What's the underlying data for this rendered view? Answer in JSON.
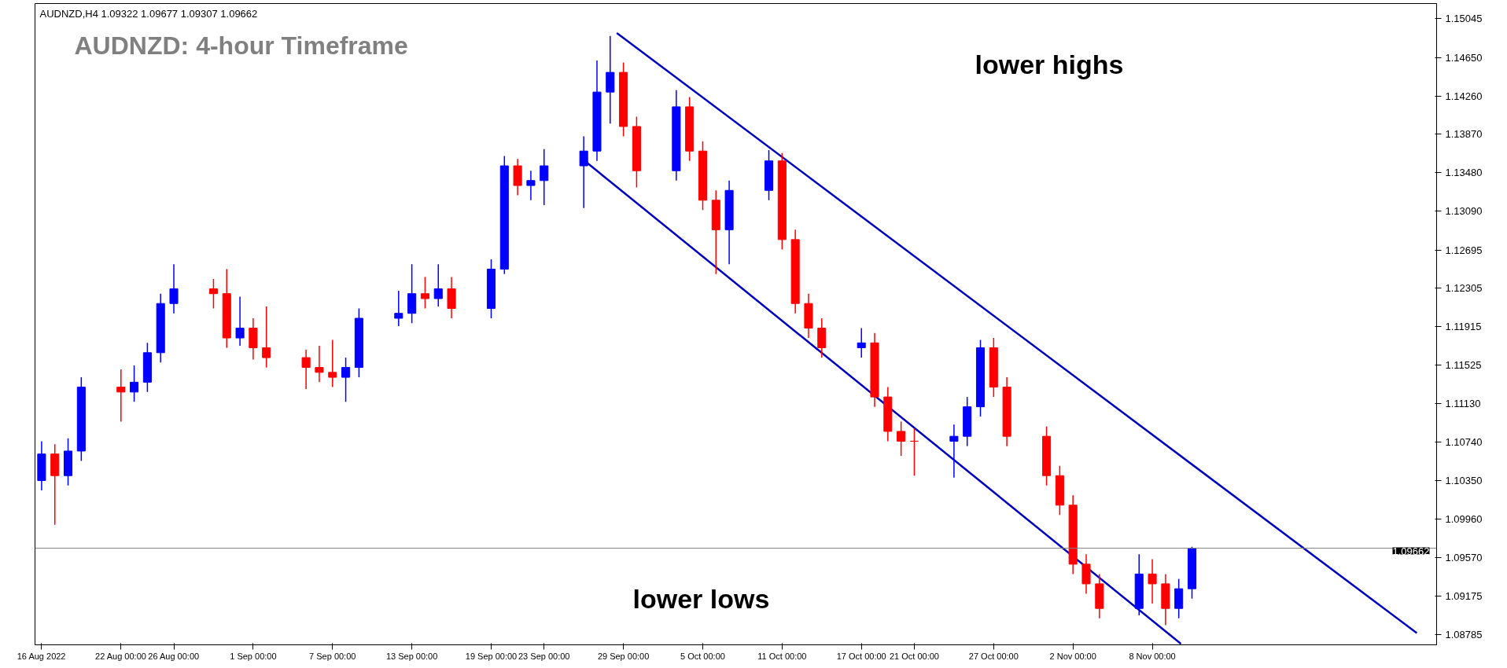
{
  "chart_data": {
    "type": "candlestick",
    "title": "AUDNZD: 4-hour Timeframe",
    "subtitle": "AUDNZD,H4  1.09322 1.09677 1.09307 1.09662",
    "annotations": [
      "lower highs",
      "lower lows"
    ],
    "x": [
      "2022-08-16",
      "2022-08-17",
      "2022-08-18",
      "2022-08-19",
      "2022-08-22",
      "2022-08-23",
      "2022-08-24",
      "2022-08-25",
      "2022-08-26",
      "2022-08-29",
      "2022-08-30",
      "2022-08-31",
      "2022-09-01",
      "2022-09-02",
      "2022-09-05",
      "2022-09-06",
      "2022-09-07",
      "2022-09-08",
      "2022-09-09",
      "2022-09-12",
      "2022-09-13",
      "2022-09-14",
      "2022-09-15",
      "2022-09-16",
      "2022-09-19",
      "2022-09-20",
      "2022-09-21",
      "2022-09-22",
      "2022-09-23",
      "2022-09-26",
      "2022-09-27",
      "2022-09-28",
      "2022-09-29",
      "2022-09-30",
      "2022-10-03",
      "2022-10-04",
      "2022-10-05",
      "2022-10-06",
      "2022-10-07",
      "2022-10-10",
      "2022-10-11",
      "2022-10-12",
      "2022-10-13",
      "2022-10-14",
      "2022-10-17",
      "2022-10-18",
      "2022-10-19",
      "2022-10-20",
      "2022-10-21",
      "2022-10-24",
      "2022-10-25",
      "2022-10-26",
      "2022-10-27",
      "2022-10-28",
      "2022-10-31",
      "2022-11-01",
      "2022-11-02",
      "2022-11-03",
      "2022-11-04",
      "2022-11-07",
      "2022-11-08",
      "2022-11-09",
      "2022-11-10",
      "2022-11-11"
    ],
    "ohlc": [
      [
        1.1035,
        1.1075,
        1.1025,
        1.1062
      ],
      [
        1.1062,
        1.1072,
        1.099,
        1.104
      ],
      [
        1.104,
        1.1078,
        1.103,
        1.1065
      ],
      [
        1.1065,
        1.114,
        1.1055,
        1.113
      ],
      [
        1.113,
        1.1148,
        1.1095,
        1.1125
      ],
      [
        1.1125,
        1.1152,
        1.1115,
        1.1135
      ],
      [
        1.1135,
        1.1175,
        1.1125,
        1.1165
      ],
      [
        1.1165,
        1.1225,
        1.1155,
        1.1215
      ],
      [
        1.1215,
        1.1255,
        1.1205,
        1.123
      ],
      [
        1.123,
        1.124,
        1.121,
        1.1225
      ],
      [
        1.1225,
        1.125,
        1.117,
        1.118
      ],
      [
        1.118,
        1.1222,
        1.1172,
        1.119
      ],
      [
        1.119,
        1.12,
        1.1158,
        1.117
      ],
      [
        1.117,
        1.1212,
        1.115,
        1.116
      ],
      [
        1.116,
        1.1168,
        1.1128,
        1.115
      ],
      [
        1.115,
        1.1172,
        1.1135,
        1.1145
      ],
      [
        1.1145,
        1.1178,
        1.113,
        1.114
      ],
      [
        1.114,
        1.116,
        1.1115,
        1.115
      ],
      [
        1.115,
        1.121,
        1.114,
        1.12
      ],
      [
        1.12,
        1.1228,
        1.1192,
        1.1205
      ],
      [
        1.1205,
        1.1255,
        1.1195,
        1.1225
      ],
      [
        1.1225,
        1.1242,
        1.121,
        1.122
      ],
      [
        1.122,
        1.1255,
        1.1212,
        1.123
      ],
      [
        1.123,
        1.1242,
        1.12,
        1.121
      ],
      [
        1.121,
        1.126,
        1.12,
        1.125
      ],
      [
        1.125,
        1.1365,
        1.1245,
        1.1355
      ],
      [
        1.1355,
        1.1362,
        1.1325,
        1.1335
      ],
      [
        1.1335,
        1.135,
        1.132,
        1.134
      ],
      [
        1.134,
        1.1372,
        1.1315,
        1.1355
      ],
      [
        1.1355,
        1.1385,
        1.1312,
        1.137
      ],
      [
        1.137,
        1.1462,
        1.136,
        1.143
      ],
      [
        1.143,
        1.1487,
        1.1398,
        1.145
      ],
      [
        1.145,
        1.146,
        1.1385,
        1.1395
      ],
      [
        1.1395,
        1.1405,
        1.1333,
        1.135
      ],
      [
        1.135,
        1.1432,
        1.134,
        1.1415
      ],
      [
        1.1415,
        1.1425,
        1.136,
        1.137
      ],
      [
        1.137,
        1.138,
        1.131,
        1.132
      ],
      [
        1.132,
        1.133,
        1.1245,
        1.129
      ],
      [
        1.129,
        1.134,
        1.1255,
        1.133
      ],
      [
        1.133,
        1.1371,
        1.132,
        1.136
      ],
      [
        1.136,
        1.1368,
        1.127,
        1.128
      ],
      [
        1.128,
        1.129,
        1.1205,
        1.1215
      ],
      [
        1.1215,
        1.1225,
        1.118,
        1.119
      ],
      [
        1.119,
        1.12,
        1.116,
        1.117
      ],
      [
        1.117,
        1.119,
        1.116,
        1.1175
      ],
      [
        1.1175,
        1.1185,
        1.111,
        1.112
      ],
      [
        1.112,
        1.113,
        1.1075,
        1.1085
      ],
      [
        1.1085,
        1.1095,
        1.106,
        1.1075
      ],
      [
        1.1075,
        1.1088,
        1.104,
        1.1075
      ],
      [
        1.1075,
        1.1092,
        1.1038,
        1.108
      ],
      [
        1.108,
        1.112,
        1.107,
        1.111
      ],
      [
        1.111,
        1.1178,
        1.11,
        1.117
      ],
      [
        1.117,
        1.118,
        1.112,
        1.113
      ],
      [
        1.113,
        1.114,
        1.107,
        1.108
      ],
      [
        1.108,
        1.109,
        1.103,
        1.104
      ],
      [
        1.104,
        1.105,
        1.1,
        1.101
      ],
      [
        1.101,
        1.102,
        1.094,
        1.095
      ],
      [
        1.095,
        1.096,
        1.092,
        1.093
      ],
      [
        1.093,
        1.094,
        1.0895,
        1.0905
      ],
      [
        1.0905,
        1.096,
        1.0898,
        1.094
      ],
      [
        1.094,
        1.0955,
        1.091,
        1.093
      ],
      [
        1.093,
        1.094,
        1.0888,
        1.0905
      ],
      [
        1.0905,
        1.0935,
        1.0895,
        1.0925
      ],
      [
        1.0925,
        1.09677,
        1.0915,
        1.09662
      ]
    ],
    "colors": [
      "#0000ff",
      "#ff0000",
      "#0000ff",
      "#0000ff",
      "#ff0000",
      "#0000ff",
      "#0000ff",
      "#0000ff",
      "#0000ff",
      "#ff0000",
      "#ff0000",
      "#0000ff",
      "#ff0000",
      "#ff0000",
      "#ff0000",
      "#ff0000",
      "#ff0000",
      "#0000ff",
      "#0000ff",
      "#0000ff",
      "#0000ff",
      "#ff0000",
      "#0000ff",
      "#ff0000",
      "#0000ff",
      "#0000ff",
      "#ff0000",
      "#0000ff",
      "#0000ff",
      "#0000ff",
      "#0000ff",
      "#0000ff",
      "#ff0000",
      "#ff0000",
      "#0000ff",
      "#ff0000",
      "#ff0000",
      "#ff0000",
      "#0000ff",
      "#0000ff",
      "#ff0000",
      "#ff0000",
      "#ff0000",
      "#ff0000",
      "#0000ff",
      "#ff0000",
      "#ff0000",
      "#ff0000",
      "#ff0000",
      "#0000ff",
      "#0000ff",
      "#0000ff",
      "#ff0000",
      "#ff0000",
      "#ff0000",
      "#ff0000",
      "#ff0000",
      "#ff0000",
      "#ff0000",
      "#0000ff",
      "#ff0000",
      "#ff0000",
      "#0000ff",
      "#0000ff"
    ],
    "series": [
      {
        "type": "line",
        "color": "#0000c0",
        "x": [
          "2022-09-28T12:00",
          "2022-11-28T00:00"
        ],
        "values": [
          1.149,
          1.088
        ]
      },
      {
        "type": "line",
        "color": "#0000c0",
        "x": [
          "2022-09-26T04:00",
          "2022-11-10T04:00"
        ],
        "values": [
          1.1359,
          1.0869
        ]
      }
    ],
    "xlim": [
      "2022-08-15T12:00",
      "2022-11-29T12:00"
    ],
    "xticks": [
      {
        "value": "2022-08-16",
        "label": "16 Aug 2022"
      },
      {
        "value": "2022-08-22",
        "label": "22 Aug 00:00"
      },
      {
        "value": "2022-08-26",
        "label": "26 Aug 00:00"
      },
      {
        "value": "2022-09-01",
        "label": "1 Sep 00:00"
      },
      {
        "value": "2022-09-07",
        "label": "7 Sep 00:00"
      },
      {
        "value": "2022-09-13",
        "label": "13 Sep 00:00"
      },
      {
        "value": "2022-09-19",
        "label": "19 Sep 00:00"
      },
      {
        "value": "2022-09-23",
        "label": "23 Sep 00:00"
      },
      {
        "value": "2022-09-29",
        "label": "29 Sep 00:00"
      },
      {
        "value": "2022-10-05",
        "label": "5 Oct 00:00"
      },
      {
        "value": "2022-10-11",
        "label": "11 Oct 00:00"
      },
      {
        "value": "2022-10-17",
        "label": "17 Oct 00:00"
      },
      {
        "value": "2022-10-21",
        "label": "21 Oct 00:00"
      },
      {
        "value": "2022-10-27",
        "label": "27 Oct 00:00"
      },
      {
        "value": "2022-11-02",
        "label": "2 Nov 00:00"
      },
      {
        "value": "2022-11-08",
        "label": "8 Nov 00:00"
      }
    ],
    "ylim": [
      1.0868,
      1.152
    ],
    "yticks": [
      {
        "value": 1.15045,
        "label": "1.15045"
      },
      {
        "value": 1.1465,
        "label": "1.14650"
      },
      {
        "value": 1.1426,
        "label": "1.14260"
      },
      {
        "value": 1.1387,
        "label": "1.13870"
      },
      {
        "value": 1.1348,
        "label": "1.13480"
      },
      {
        "value": 1.1309,
        "label": "1.13090"
      },
      {
        "value": 1.12695,
        "label": "1.12695"
      },
      {
        "value": 1.12305,
        "label": "1.12305"
      },
      {
        "value": 1.11915,
        "label": "1.11915"
      },
      {
        "value": 1.11525,
        "label": "1.11525"
      },
      {
        "value": 1.1113,
        "label": "1.11130"
      },
      {
        "value": 1.1074,
        "label": "1.10740"
      },
      {
        "value": 1.1035,
        "label": "1.10350"
      },
      {
        "value": 1.0996,
        "label": "1.09960"
      },
      {
        "value": 1.0957,
        "label": "1.09570"
      },
      {
        "value": 1.09175,
        "label": "1.09175"
      },
      {
        "value": 1.08785,
        "label": "1.08785"
      }
    ],
    "ref_lines": [
      {
        "axis": "y",
        "value": 1.09662,
        "label": "1.09662",
        "color": "#808080"
      }
    ]
  }
}
